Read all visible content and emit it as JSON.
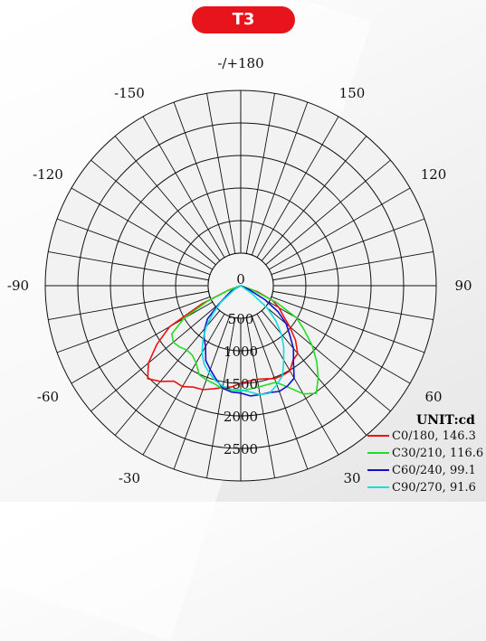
{
  "badge": {
    "label": "T3"
  },
  "chart_data": {
    "type": "polar-line",
    "title": "T3",
    "radial_ticks": [
      0,
      500,
      1000,
      1500,
      2000,
      2500
    ],
    "radial_max": 3000,
    "angle_labels": [
      {
        "text": "-/+180",
        "angle": 180
      },
      {
        "text": "-150",
        "angle": -150
      },
      {
        "text": "150",
        "angle": 150
      },
      {
        "text": "-120",
        "angle": -120
      },
      {
        "text": "120",
        "angle": 120
      },
      {
        "text": "-90",
        "angle": -90
      },
      {
        "text": "90",
        "angle": 90
      },
      {
        "text": "-60",
        "angle": -60
      },
      {
        "text": "60",
        "angle": 60
      },
      {
        "text": "-30",
        "angle": -30
      },
      {
        "text": "30",
        "angle": 30
      },
      {
        "text": "0",
        "angle": 0
      }
    ],
    "unit_label": "UNIT:cd",
    "series": [
      {
        "name": "C0/180, 146.3",
        "color": "#ee1111",
        "points": [
          [
            -70,
            195
          ],
          [
            -65,
            650
          ],
          [
            -60,
            1260
          ],
          [
            -55,
            1570
          ],
          [
            -50,
            1850
          ],
          [
            -45,
            2020
          ],
          [
            -40,
            1920
          ],
          [
            -35,
            1790
          ],
          [
            -30,
            1790
          ],
          [
            -25,
            1720
          ],
          [
            -20,
            1700
          ],
          [
            -15,
            1640
          ],
          [
            -10,
            1590
          ],
          [
            -5,
            1560
          ],
          [
            0,
            1500
          ],
          [
            5,
            1470
          ],
          [
            10,
            1460
          ],
          [
            15,
            1480
          ],
          [
            20,
            1520
          ],
          [
            25,
            1520
          ],
          [
            30,
            1510
          ],
          [
            35,
            1400
          ],
          [
            40,
            1360
          ],
          [
            45,
            1190
          ],
          [
            50,
            980
          ],
          [
            55,
            790
          ],
          [
            60,
            680
          ],
          [
            65,
            540
          ],
          [
            70,
            280
          ]
        ]
      },
      {
        "name": "C30/210, 116.6",
        "color": "#22dd22",
        "points": [
          [
            -70,
            190
          ],
          [
            -65,
            560
          ],
          [
            -60,
            1010
          ],
          [
            -55,
            1290
          ],
          [
            -50,
            1350
          ],
          [
            -45,
            1330
          ],
          [
            -40,
            1290
          ],
          [
            -35,
            1300
          ],
          [
            -30,
            1370
          ],
          [
            -25,
            1510
          ],
          [
            -20,
            1540
          ],
          [
            -15,
            1560
          ],
          [
            -10,
            1610
          ],
          [
            0,
            1620
          ],
          [
            10,
            1580
          ],
          [
            20,
            1580
          ],
          [
            25,
            1720
          ],
          [
            30,
            1920
          ],
          [
            35,
            2020
          ],
          [
            40,
            1850
          ],
          [
            45,
            1650
          ],
          [
            50,
            1430
          ],
          [
            55,
            1190
          ],
          [
            60,
            990
          ],
          [
            65,
            600
          ],
          [
            70,
            200
          ]
        ]
      },
      {
        "name": "C60/240, 99.1",
        "color": "#1111cc",
        "points": [
          [
            -60,
            180
          ],
          [
            -50,
            440
          ],
          [
            -45,
            720
          ],
          [
            -40,
            860
          ],
          [
            -35,
            980
          ],
          [
            -30,
            1080
          ],
          [
            -25,
            1270
          ],
          [
            -20,
            1370
          ],
          [
            -15,
            1480
          ],
          [
            -10,
            1600
          ],
          [
            -5,
            1640
          ],
          [
            0,
            1650
          ],
          [
            5,
            1700
          ],
          [
            10,
            1700
          ],
          [
            15,
            1700
          ],
          [
            20,
            1730
          ],
          [
            25,
            1700
          ],
          [
            30,
            1640
          ],
          [
            35,
            1410
          ],
          [
            40,
            1260
          ],
          [
            45,
            1060
          ],
          [
            50,
            910
          ],
          [
            55,
            700
          ],
          [
            60,
            430
          ],
          [
            65,
            140
          ]
        ]
      },
      {
        "name": "C90/270, 91.6",
        "color": "#11dddd",
        "points": [
          [
            -60,
            100
          ],
          [
            -50,
            400
          ],
          [
            -45,
            600
          ],
          [
            -40,
            830
          ],
          [
            -35,
            1010
          ],
          [
            -30,
            1190
          ],
          [
            -25,
            1330
          ],
          [
            -20,
            1420
          ],
          [
            -15,
            1510
          ],
          [
            -10,
            1570
          ],
          [
            -5,
            1600
          ],
          [
            0,
            1600
          ],
          [
            5,
            1640
          ],
          [
            10,
            1700
          ],
          [
            15,
            1710
          ],
          [
            20,
            1620
          ],
          [
            25,
            1520
          ],
          [
            30,
            1320
          ],
          [
            35,
            1150
          ],
          [
            40,
            970
          ],
          [
            45,
            760
          ],
          [
            50,
            530
          ],
          [
            55,
            200
          ]
        ]
      }
    ]
  }
}
